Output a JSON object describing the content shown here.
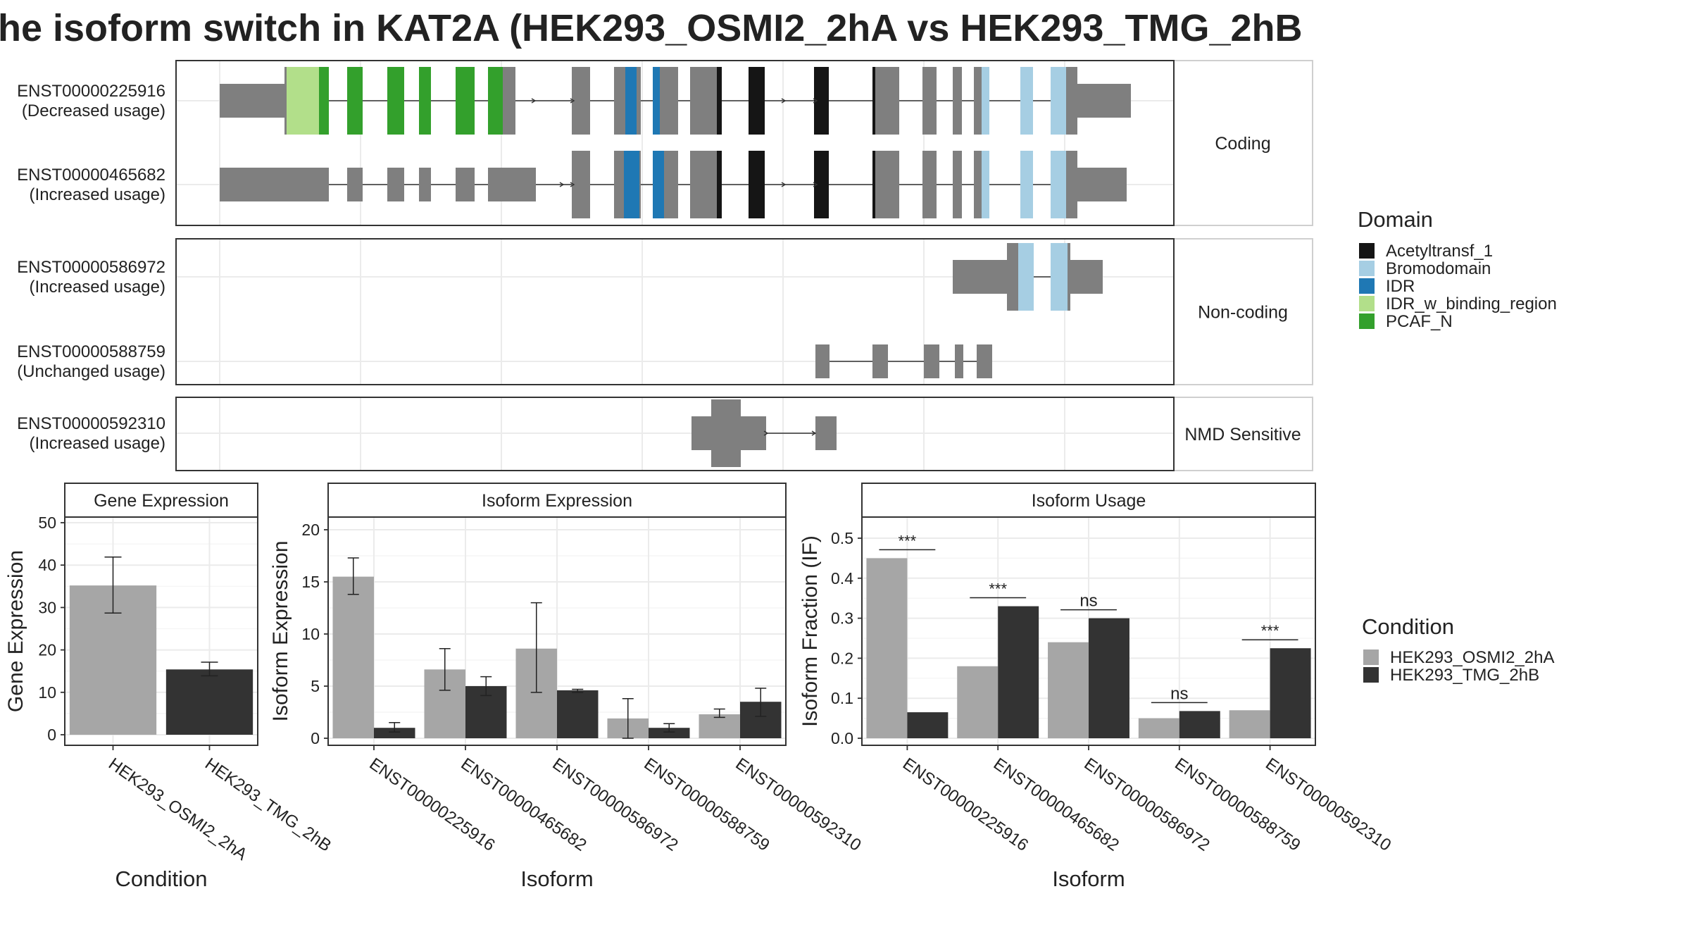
{
  "title": "he isoform switch in KAT2A (HEK293_OSMI2_2hA vs HEK293_TMG_2hB",
  "colors": {
    "exon": "#7f7f7f",
    "cond1": "#a6a6a6",
    "cond2": "#333333",
    "Acetyltransf_1": "#151515",
    "Bromodomain": "#a6cee3",
    "IDR": "#1f78b4",
    "IDR_w_binding_region": "#b2df8a",
    "PCAF_N": "#33a02c"
  },
  "structure": {
    "panels": [
      {
        "label": "Coding",
        "transcripts": [
          {
            "id": "ENST00000225916",
            "usage": "(Decreased usage)"
          },
          {
            "id": "ENST00000465682",
            "usage": "(Increased usage)"
          }
        ]
      },
      {
        "label": "Non-coding",
        "transcripts": [
          {
            "id": "ENST00000586972",
            "usage": "(Increased usage)"
          },
          {
            "id": "ENST00000588759",
            "usage": "(Unchanged usage)"
          }
        ]
      },
      {
        "label": "NMD Sensitive",
        "transcripts": [
          {
            "id": "ENST00000592310",
            "usage": "(Increased usage)"
          }
        ]
      }
    ]
  },
  "legend_domain": {
    "title": "Domain",
    "items": [
      "Acetyltransf_1",
      "Bromodomain",
      "IDR",
      "IDR_w_binding_region",
      "PCAF_N"
    ]
  },
  "legend_condition": {
    "title": "Condition",
    "items": [
      "HEK293_OSMI2_2hA",
      "HEK293_TMG_2hB"
    ]
  },
  "chart_data": [
    {
      "type": "bar",
      "title": "Gene Expression",
      "xlabel": "Condition",
      "ylabel": "Gene Expression",
      "ylim": [
        0,
        50
      ],
      "yticks": [
        0,
        10,
        20,
        30,
        40,
        50
      ],
      "categories": [
        "HEK293_OSMI2_2hA",
        "HEK293_TMG_2hB"
      ],
      "values": [
        35.2,
        15.4
      ],
      "errors": [
        [
          28.7,
          41.9
        ],
        [
          13.9,
          17.1
        ]
      ]
    },
    {
      "type": "bar",
      "title": "Isoform Expression",
      "xlabel": "Isoform",
      "ylabel": "Isoform Expression",
      "ylim": [
        0,
        20
      ],
      "yticks": [
        0,
        5,
        10,
        15,
        20
      ],
      "categories": [
        "ENST00000225916",
        "ENST00000465682",
        "ENST00000586972",
        "ENST00000588759",
        "ENST00000592310"
      ],
      "series": [
        {
          "name": "HEK293_OSMI2_2hA",
          "values": [
            15.5,
            6.6,
            8.6,
            1.9,
            2.3
          ],
          "errors": [
            [
              13.8,
              17.3
            ],
            [
              4.6,
              8.6
            ],
            [
              4.4,
              13.0
            ],
            [
              0.0,
              3.8
            ],
            [
              2.0,
              2.8
            ]
          ]
        },
        {
          "name": "HEK293_TMG_2hB",
          "values": [
            1.0,
            5.0,
            4.6,
            1.0,
            3.5
          ],
          "errors": [
            [
              0.6,
              1.5
            ],
            [
              4.1,
              5.9
            ],
            [
              4.4,
              4.7
            ],
            [
              0.6,
              1.4
            ],
            [
              2.1,
              4.8
            ]
          ]
        }
      ]
    },
    {
      "type": "bar",
      "title": "Isoform Usage",
      "xlabel": "Isoform",
      "ylabel": "Isoform Fraction (IF)",
      "ylim": [
        0,
        0.5
      ],
      "yticks": [
        "0.0",
        "0.1",
        "0.2",
        "0.3",
        "0.4",
        "0.5"
      ],
      "categories": [
        "ENST00000225916",
        "ENST00000465682",
        "ENST00000586972",
        "ENST00000588759",
        "ENST00000592310"
      ],
      "series": [
        {
          "name": "HEK293_OSMI2_2hA",
          "values": [
            0.45,
            0.18,
            0.24,
            0.05,
            0.07
          ]
        },
        {
          "name": "HEK293_TMG_2hB",
          "values": [
            0.065,
            0.33,
            0.3,
            0.068,
            0.225
          ]
        }
      ],
      "significance": [
        "***",
        "***",
        "ns",
        "ns",
        "***"
      ]
    }
  ]
}
